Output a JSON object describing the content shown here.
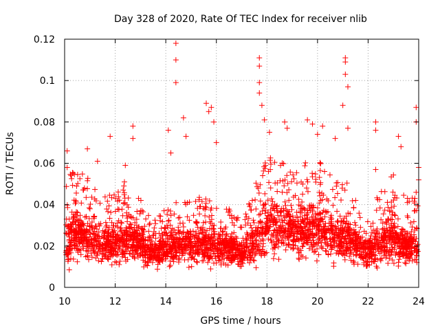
{
  "chart_data": {
    "type": "scatter",
    "title": "Day 328 of 2020, Rate Of TEC Index for receiver nlib",
    "xlabel": "GPS time / hours",
    "ylabel": "ROTI / TECUs",
    "xlim": [
      10,
      24
    ],
    "ylim": [
      0,
      0.12
    ],
    "x_ticks": [
      "10",
      "12",
      "14",
      "16",
      "18",
      "20",
      "22",
      "24"
    ],
    "y_ticks": [
      "0",
      "0.02",
      "0.04",
      "0.06",
      "0.08",
      "0.1",
      "0.12"
    ],
    "grid": true,
    "marker": "plus",
    "color": "#ff0000",
    "points": [
      [
        10.1,
        0.066
      ],
      [
        10.1,
        0.058
      ],
      [
        10.9,
        0.067
      ],
      [
        11.3,
        0.061
      ],
      [
        11.8,
        0.073
      ],
      [
        12.4,
        0.059
      ],
      [
        12.7,
        0.078
      ],
      [
        12.7,
        0.072
      ],
      [
        14.1,
        0.076
      ],
      [
        14.2,
        0.065
      ],
      [
        14.4,
        0.118
      ],
      [
        14.4,
        0.11
      ],
      [
        14.4,
        0.099
      ],
      [
        14.7,
        0.082
      ],
      [
        14.8,
        0.073
      ],
      [
        15.6,
        0.089
      ],
      [
        15.7,
        0.085
      ],
      [
        15.8,
        0.087
      ],
      [
        15.9,
        0.08
      ],
      [
        16.0,
        0.07
      ],
      [
        17.7,
        0.111
      ],
      [
        17.7,
        0.107
      ],
      [
        17.7,
        0.099
      ],
      [
        17.7,
        0.094
      ],
      [
        17.8,
        0.088
      ],
      [
        17.9,
        0.081
      ],
      [
        18.1,
        0.075
      ],
      [
        18.7,
        0.08
      ],
      [
        18.8,
        0.077
      ],
      [
        19.6,
        0.081
      ],
      [
        19.8,
        0.079
      ],
      [
        20.0,
        0.074
      ],
      [
        20.2,
        0.078
      ],
      [
        20.7,
        0.072
      ],
      [
        21.0,
        0.088
      ],
      [
        21.1,
        0.111
      ],
      [
        21.1,
        0.109
      ],
      [
        21.1,
        0.103
      ],
      [
        21.2,
        0.097
      ],
      [
        21.2,
        0.077
      ],
      [
        22.3,
        0.08
      ],
      [
        22.3,
        0.076
      ],
      [
        22.3,
        0.057
      ],
      [
        23.2,
        0.073
      ],
      [
        23.3,
        0.068
      ],
      [
        23.9,
        0.087
      ],
      [
        23.9,
        0.08
      ],
      [
        24.0,
        0.058
      ],
      [
        24.0,
        0.052
      ],
      [
        23.9,
        0.046
      ]
    ],
    "dense_cloud": {
      "note_hours": [
        10,
        24
      ],
      "profile": [
        [
          10.0,
          0.022,
          0.012
        ],
        [
          10.5,
          0.026,
          0.012
        ],
        [
          11.0,
          0.024,
          0.011
        ],
        [
          11.5,
          0.02,
          0.009
        ],
        [
          12.0,
          0.021,
          0.01
        ],
        [
          12.5,
          0.024,
          0.011
        ],
        [
          13.0,
          0.02,
          0.009
        ],
        [
          13.5,
          0.016,
          0.006
        ],
        [
          14.0,
          0.018,
          0.008
        ],
        [
          14.5,
          0.02,
          0.009
        ],
        [
          15.0,
          0.02,
          0.009
        ],
        [
          15.5,
          0.021,
          0.01
        ],
        [
          16.0,
          0.02,
          0.009
        ],
        [
          16.5,
          0.019,
          0.008
        ],
        [
          17.0,
          0.016,
          0.006
        ],
        [
          17.5,
          0.022,
          0.011
        ],
        [
          18.0,
          0.028,
          0.014
        ],
        [
          18.5,
          0.028,
          0.013
        ],
        [
          19.0,
          0.027,
          0.012
        ],
        [
          19.5,
          0.028,
          0.013
        ],
        [
          20.0,
          0.028,
          0.013
        ],
        [
          20.5,
          0.025,
          0.012
        ],
        [
          21.0,
          0.024,
          0.012
        ],
        [
          21.5,
          0.02,
          0.009
        ],
        [
          22.0,
          0.016,
          0.006
        ],
        [
          22.5,
          0.022,
          0.011
        ],
        [
          23.0,
          0.024,
          0.012
        ],
        [
          23.5,
          0.02,
          0.009
        ],
        [
          24.0,
          0.02,
          0.009
        ]
      ]
    }
  }
}
